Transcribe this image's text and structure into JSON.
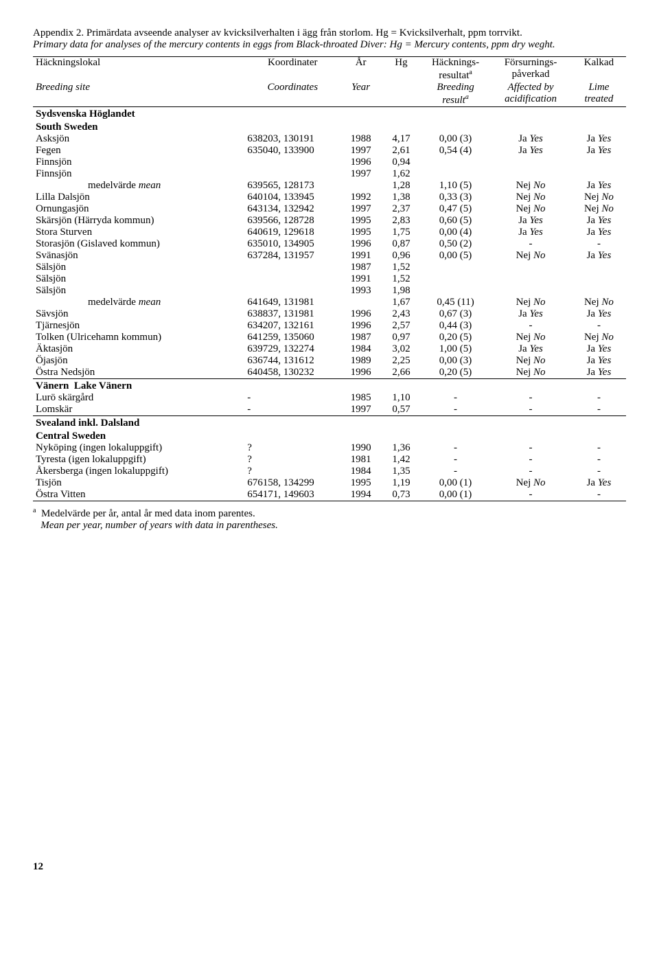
{
  "title_sv": "Appendix 2. Primärdata avseende analyser av kvicksilverhalten i ägg från storlom. Hg = Kvicksilverhalt, ppm torrvikt.",
  "title_en": "Primary data for analyses of the mercury contents in eggs from Black-throated Diver: Hg = Mercury contents, ppm dry weght.",
  "hdr_sv": {
    "site": "Häckningslokal",
    "coord": "Koordinater",
    "year": "År",
    "hg": "Hg",
    "breed": "Häcknings-\nresultat",
    "breed_sup": "a",
    "acid": "Försurnings-\npåverkad",
    "lime": "Kalkad"
  },
  "hdr_en": {
    "site": "Breeding site",
    "coord": "Coordinates",
    "year": "Year",
    "hg": "",
    "breed": "Breeding\nresult",
    "breed_sup": "a",
    "acid": "Affected by\nacidification",
    "lime": "Lime\ntreated"
  },
  "sections": [
    {
      "name_sv": "Sydsvenska Höglandet",
      "name_en": "South Sweden",
      "rows": [
        {
          "site": "Asksjön",
          "coord": "638203, 130191",
          "year": "1988",
          "hg": "4,17",
          "breed": "0,00 (3)",
          "acid": "Ja",
          "acid_i": "Yes",
          "lime": "Ja",
          "lime_i": "Yes"
        },
        {
          "site": "Fegen",
          "coord": "635040, 133900",
          "year": "1997",
          "hg": "2,61",
          "breed": "0,54 (4)",
          "acid": "Ja",
          "acid_i": "Yes",
          "lime": "Ja",
          "lime_i": "Yes"
        },
        {
          "site": "Finnsjön",
          "coord": "",
          "year": "1996",
          "hg": "0,94",
          "breed": "",
          "acid": "",
          "acid_i": "",
          "lime": "",
          "lime_i": ""
        },
        {
          "site": "Finnsjön",
          "coord": "",
          "year": "1997",
          "hg": "1,62",
          "breed": "",
          "acid": "",
          "acid_i": "",
          "lime": "",
          "lime_i": ""
        },
        {
          "site": "medelvärde",
          "site_i": "mean",
          "indent": true,
          "coord": "639565, 128173",
          "year": "",
          "hg": "1,28",
          "breed": "1,10 (5)",
          "acid": "Nej",
          "acid_i": "No",
          "lime": "Ja",
          "lime_i": "Yes"
        },
        {
          "site": "Lilla Dalsjön",
          "coord": "640104, 133945",
          "year": "1992",
          "hg": "1,38",
          "breed": "0,33 (3)",
          "acid": "Nej",
          "acid_i": "No",
          "lime": "Nej",
          "lime_i": "No"
        },
        {
          "site": "Ornungasjön",
          "coord": "643134, 132942",
          "year": "1997",
          "hg": "2,37",
          "breed": "0,47 (5)",
          "acid": "Nej",
          "acid_i": "No",
          "lime": "Nej",
          "lime_i": "No"
        },
        {
          "site": "Skärsjön (Härryda kommun)",
          "coord": "639566, 128728",
          "year": "1995",
          "hg": "2,83",
          "breed": "0,60 (5)",
          "acid": "Ja",
          "acid_i": "Yes",
          "lime": "Ja",
          "lime_i": "Yes"
        },
        {
          "site": "Stora Sturven",
          "coord": "640619, 129618",
          "year": "1995",
          "hg": "1,75",
          "breed": "0,00 (4)",
          "acid": "Ja",
          "acid_i": "Yes",
          "lime": "Ja",
          "lime_i": "Yes"
        },
        {
          "site": "Storasjön (Gislaved kommun)",
          "coord": "635010, 134905",
          "year": "1996",
          "hg": "0,87",
          "breed": "0,50 (2)",
          "acid": "-",
          "acid_i": "",
          "lime": "-",
          "lime_i": ""
        },
        {
          "site": "Svänasjön",
          "coord": "637284, 131957",
          "year": "1991",
          "hg": "0,96",
          "breed": "0,00 (5)",
          "acid": "Nej",
          "acid_i": "No",
          "lime": "Ja",
          "lime_i": "Yes"
        },
        {
          "site": "Sälsjön",
          "coord": "",
          "year": "1987",
          "hg": "1,52",
          "breed": "",
          "acid": "",
          "acid_i": "",
          "lime": "",
          "lime_i": ""
        },
        {
          "site": "Sälsjön",
          "coord": "",
          "year": "1991",
          "hg": "1,52",
          "breed": "",
          "acid": "",
          "acid_i": "",
          "lime": "",
          "lime_i": ""
        },
        {
          "site": "Sälsjön",
          "coord": "",
          "year": "1993",
          "hg": "1,98",
          "breed": "",
          "acid": "",
          "acid_i": "",
          "lime": "",
          "lime_i": ""
        },
        {
          "site": "medelvärde",
          "site_i": "mean",
          "indent": true,
          "coord": "641649, 131981",
          "year": "",
          "hg": "1,67",
          "breed": "0,45 (11)",
          "acid": "Nej",
          "acid_i": "No",
          "lime": "Nej",
          "lime_i": "No"
        },
        {
          "site": "Sävsjön",
          "coord": "638837, 131981",
          "year": "1996",
          "hg": "2,43",
          "breed": "0,67 (3)",
          "acid": "Ja",
          "acid_i": "Yes",
          "lime": "Ja",
          "lime_i": "Yes"
        },
        {
          "site": "Tjärnesjön",
          "coord": "634207, 132161",
          "year": "1996",
          "hg": "2,57",
          "breed": "0,44 (3)",
          "acid": "-",
          "acid_i": "",
          "lime": "-",
          "lime_i": ""
        },
        {
          "site": "Tolken (Ulricehamn kommun)",
          "coord": "641259, 135060",
          "year": "1987",
          "hg": "0,97",
          "breed": "0,20 (5)",
          "acid": "Nej",
          "acid_i": "No",
          "lime": "Nej",
          "lime_i": "No"
        },
        {
          "site": "Äktasjön",
          "coord": "639729, 132274",
          "year": "1984",
          "hg": "3,02",
          "breed": "1,00 (5)",
          "acid": "Ja",
          "acid_i": "Yes",
          "lime": "Ja",
          "lime_i": "Yes"
        },
        {
          "site": "Öjasjön",
          "coord": "636744, 131612",
          "year": "1989",
          "hg": "2,25",
          "breed": "0,00 (3)",
          "acid": "Nej",
          "acid_i": "No",
          "lime": "Ja",
          "lime_i": "Yes"
        },
        {
          "site": "Östra Nedsjön",
          "coord": "640458, 130232",
          "year": "1996",
          "hg": "2,66",
          "breed": "0,20 (5)",
          "acid": "Nej",
          "acid_i": "No",
          "lime": "Ja",
          "lime_i": "Yes"
        }
      ]
    },
    {
      "name_sv": "Vänern",
      "name_en": "Lake Vänern",
      "inline": true,
      "rows": [
        {
          "site": "Lurö skärgård",
          "coord": "-",
          "year": "1985",
          "hg": "1,10",
          "breed": "-",
          "acid": "-",
          "acid_i": "",
          "lime": "-",
          "lime_i": ""
        },
        {
          "site": "Lomskär",
          "coord": "-",
          "year": "1997",
          "hg": "0,57",
          "breed": "-",
          "acid": "-",
          "acid_i": "",
          "lime": "-",
          "lime_i": ""
        }
      ]
    },
    {
      "name_sv": "Svealand inkl. Dalsland",
      "name_en": "Central Sweden",
      "rows": [
        {
          "site": "Nyköping (ingen lokaluppgift)",
          "coord": "?",
          "year": "1990",
          "hg": "1,36",
          "breed": "-",
          "acid": "-",
          "acid_i": "",
          "lime": "-",
          "lime_i": ""
        },
        {
          "site": "Tyresta (igen lokaluppgift)",
          "coord": "?",
          "year": "1981",
          "hg": "1,42",
          "breed": "-",
          "acid": "-",
          "acid_i": "",
          "lime": "-",
          "lime_i": ""
        },
        {
          "site": "Åkersberga (ingen lokaluppgift)",
          "coord": "?",
          "year": "1984",
          "hg": "1,35",
          "breed": "-",
          "acid": "-",
          "acid_i": "",
          "lime": "-",
          "lime_i": ""
        },
        {
          "site": "Tisjön",
          "coord": "676158, 134299",
          "year": "1995",
          "hg": "1,19",
          "breed": "0,00 (1)",
          "acid": "Nej",
          "acid_i": "No",
          "lime": "Ja",
          "lime_i": "Yes"
        },
        {
          "site": "Östra Vitten",
          "coord": "654171, 149603",
          "year": "1994",
          "hg": "0,73",
          "breed": "0,00 (1)",
          "acid": "-",
          "acid_i": "",
          "lime": "-",
          "lime_i": ""
        }
      ]
    }
  ],
  "footnote_sup": "a",
  "footnote_sv": "Medelvärde per år, antal år med data inom parentes.",
  "footnote_en": "Mean per year, number of years with data in parentheses.",
  "page": "12"
}
